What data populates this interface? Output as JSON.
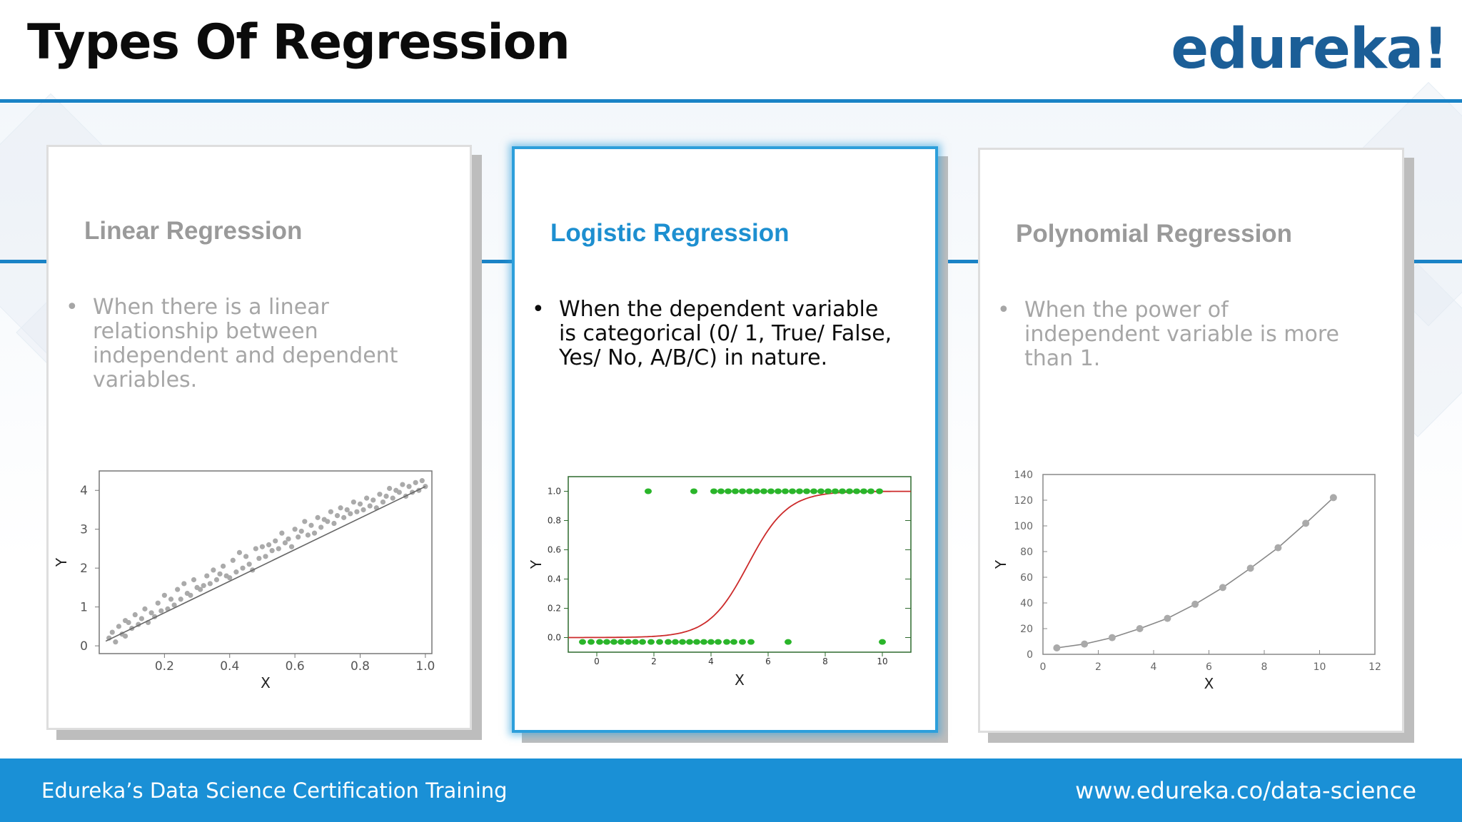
{
  "header": {
    "title": "Types Of Regression",
    "logo": "edureka!"
  },
  "footer": {
    "left": "Edureka’s Data Science Certification Training",
    "right": "www.edureka.co/data-science"
  },
  "colors": {
    "accent": "#1a83c6",
    "logo": "#1b5e97",
    "active_title": "#1d8fd0",
    "footer": "#1a90d6",
    "logistic_points": "#2ab52a",
    "logistic_curve": "#cc2a2a",
    "gray_points": "#aaaaaa"
  },
  "cards": [
    {
      "title": "Linear Regression",
      "bullet": "When there is a linear relationship between independent and dependent variables.",
      "active": false
    },
    {
      "title": "Logistic Regression",
      "bullet": "When the dependent variable is categorical (0/ 1, True/ False, Yes/ No, A/B/C) in nature.",
      "active": true
    },
    {
      "title": "Polynomial Regression",
      "bullet": "When the power of independent variable is more than 1.",
      "active": false
    }
  ],
  "chart_data": [
    {
      "type": "scatter",
      "title": "",
      "xlabel": "X",
      "ylabel": "Y",
      "xlim": [
        0,
        1.02
      ],
      "ylim": [
        -0.2,
        4.5
      ],
      "xticks": [
        "0.2",
        "0.4",
        "0.6",
        "0.8",
        "1.0"
      ],
      "xtick_values": [
        0.2,
        0.4,
        0.6,
        0.8,
        1.0
      ],
      "yticks": [
        "0",
        "1",
        "2",
        "3",
        "4"
      ],
      "ytick_values": [
        0,
        1,
        2,
        3,
        4
      ],
      "fit_line": {
        "x": [
          0.02,
          1.0
        ],
        "y": [
          0.12,
          4.1
        ]
      },
      "x": [
        0.03,
        0.04,
        0.05,
        0.06,
        0.07,
        0.08,
        0.08,
        0.09,
        0.1,
        0.11,
        0.12,
        0.13,
        0.14,
        0.15,
        0.16,
        0.17,
        0.18,
        0.19,
        0.2,
        0.21,
        0.22,
        0.23,
        0.24,
        0.25,
        0.26,
        0.27,
        0.28,
        0.29,
        0.3,
        0.31,
        0.32,
        0.33,
        0.34,
        0.35,
        0.36,
        0.37,
        0.38,
        0.39,
        0.4,
        0.41,
        0.42,
        0.43,
        0.44,
        0.45,
        0.46,
        0.47,
        0.48,
        0.49,
        0.5,
        0.51,
        0.52,
        0.53,
        0.54,
        0.55,
        0.56,
        0.57,
        0.58,
        0.59,
        0.6,
        0.61,
        0.62,
        0.63,
        0.64,
        0.65,
        0.66,
        0.67,
        0.68,
        0.69,
        0.7,
        0.71,
        0.72,
        0.73,
        0.74,
        0.75,
        0.76,
        0.77,
        0.78,
        0.79,
        0.8,
        0.81,
        0.82,
        0.83,
        0.84,
        0.85,
        0.86,
        0.87,
        0.88,
        0.89,
        0.9,
        0.91,
        0.92,
        0.93,
        0.94,
        0.95,
        0.96,
        0.97,
        0.98,
        0.99,
        1.0
      ],
      "y": [
        0.2,
        0.35,
        0.1,
        0.5,
        0.3,
        0.65,
        0.25,
        0.6,
        0.45,
        0.8,
        0.55,
        0.7,
        0.95,
        0.6,
        0.85,
        0.75,
        1.1,
        0.9,
        1.3,
        0.95,
        1.2,
        1.05,
        1.45,
        1.2,
        1.6,
        1.35,
        1.3,
        1.7,
        1.5,
        1.45,
        1.55,
        1.8,
        1.6,
        1.95,
        1.7,
        1.85,
        2.05,
        1.8,
        1.75,
        2.2,
        1.9,
        2.4,
        2.0,
        2.3,
        2.1,
        1.95,
        2.5,
        2.25,
        2.55,
        2.3,
        2.6,
        2.45,
        2.7,
        2.5,
        2.9,
        2.65,
        2.75,
        2.55,
        3.0,
        2.8,
        2.95,
        3.2,
        2.85,
        3.1,
        2.9,
        3.3,
        3.05,
        3.25,
        3.2,
        3.45,
        3.15,
        3.35,
        3.55,
        3.3,
        3.5,
        3.4,
        3.7,
        3.45,
        3.65,
        3.5,
        3.8,
        3.6,
        3.75,
        3.55,
        3.9,
        3.7,
        3.85,
        4.05,
        3.8,
        4.0,
        3.95,
        4.15,
        3.85,
        4.1,
        3.95,
        4.2,
        4.0,
        4.25,
        4.1
      ]
    },
    {
      "type": "scatter",
      "title": "",
      "xlabel": "X",
      "ylabel": "Y",
      "xlim": [
        -1,
        11
      ],
      "ylim": [
        -0.1,
        1.1
      ],
      "xticks": [
        "0",
        "2",
        "4",
        "6",
        "8",
        "10"
      ],
      "xtick_values": [
        0,
        2,
        4,
        6,
        8,
        10
      ],
      "yticks": [
        "0.0",
        "0.2",
        "0.4",
        "0.6",
        "0.8",
        "1.0"
      ],
      "ytick_values": [
        0,
        0.2,
        0.4,
        0.6,
        0.8,
        1.0
      ],
      "curve": {
        "kind": "logistic",
        "midpoint": 5.3,
        "steepness": 1.45
      },
      "points_y0": [
        -0.5,
        -0.2,
        0.1,
        0.35,
        0.6,
        0.85,
        1.1,
        1.35,
        1.6,
        1.9,
        2.2,
        2.5,
        2.75,
        3.0,
        3.25,
        3.5,
        3.75,
        4.0,
        4.25,
        4.55,
        4.8,
        5.1,
        5.4,
        6.7,
        10.0
      ],
      "points_y1": [
        1.8,
        3.4,
        4.1,
        4.35,
        4.6,
        4.85,
        5.1,
        5.35,
        5.6,
        5.85,
        6.1,
        6.35,
        6.6,
        6.85,
        7.1,
        7.35,
        7.6,
        7.85,
        8.1,
        8.35,
        8.6,
        8.85,
        9.1,
        9.35,
        9.6,
        9.9
      ]
    },
    {
      "type": "line",
      "title": "",
      "xlabel": "X",
      "ylabel": "Y",
      "xlim": [
        0,
        12
      ],
      "ylim": [
        0,
        140
      ],
      "xticks": [
        "0",
        "2",
        "4",
        "6",
        "8",
        "10",
        "12"
      ],
      "xtick_values": [
        0,
        2,
        4,
        6,
        8,
        10,
        12
      ],
      "yticks": [
        "0",
        "20",
        "40",
        "60",
        "80",
        "100",
        "120",
        "140"
      ],
      "ytick_values": [
        0,
        20,
        40,
        60,
        80,
        100,
        120,
        140
      ],
      "x": [
        0.5,
        1.5,
        2.5,
        3.5,
        4.5,
        5.5,
        6.5,
        7.5,
        8.5,
        9.5,
        10.5
      ],
      "y": [
        5,
        8,
        13,
        20,
        28,
        39,
        52,
        67,
        83,
        102,
        122
      ]
    }
  ]
}
